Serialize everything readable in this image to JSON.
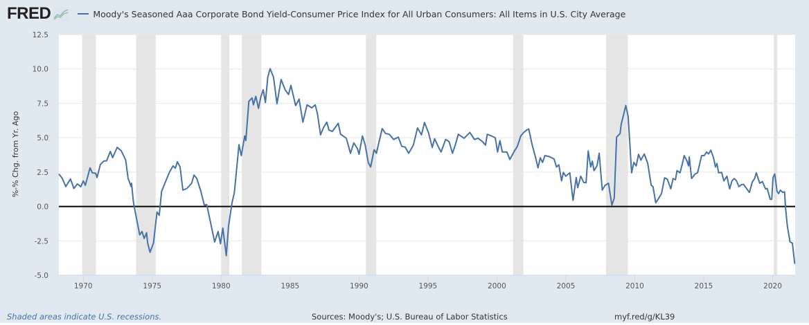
{
  "header": {
    "logo_text": "FRED",
    "logo_icon": "line-graph-icon",
    "legend_title": "Moody's Seasoned Aaa Corporate Bond Yield-Consumer Price Index for All Urban Consumers: All Items in U.S. City Average"
  },
  "footer": {
    "recession_note": "Shaded areas indicate U.S. recessions.",
    "sources": "Sources: Moody's; U.S. Bureau of Labor Statistics",
    "short_url": "myf.red/g/KL39"
  },
  "chart_data": {
    "type": "line",
    "title": "",
    "xlabel": "",
    "ylabel": "%-% Chg. from Yr. Ago",
    "xlim": [
      1968.23,
      2021.63
    ],
    "ylim": [
      -5.0,
      12.5
    ],
    "y_ticks": [
      "-5.0",
      "-2.5",
      "0.0",
      "2.5",
      "5.0",
      "7.5",
      "10.0",
      "12.5"
    ],
    "x_ticks": [
      "1970",
      "1975",
      "1980",
      "1985",
      "1990",
      "1995",
      "2000",
      "2005",
      "2010",
      "2015",
      "2020"
    ],
    "grid": true,
    "zero_line": true,
    "colors": {
      "series": "#4572a7",
      "recession": "#e5e5e5",
      "background": "#e1e9f0",
      "plot": "#ffffff"
    },
    "recessions": [
      [
        "1969-12",
        "1970-11"
      ],
      [
        "1973-11",
        "1975-03"
      ],
      [
        "1980-01",
        "1980-07"
      ],
      [
        "1981-07",
        "1982-11"
      ],
      [
        "1990-07",
        "1991-03"
      ],
      [
        "2001-03",
        "2001-11"
      ],
      [
        "2007-12",
        "2009-06"
      ],
      [
        "2020-02",
        "2020-04"
      ]
    ],
    "series": [
      {
        "name": "Moody's Seasoned Aaa Corporate Bond Yield-Consumer Price Index for All Urban Consumers: All Items in U.S. City Average",
        "points": [
          [
            1968.23,
            2.36
          ],
          [
            1968.48,
            2.04
          ],
          [
            1968.73,
            1.44
          ],
          [
            1969.07,
            2.0
          ],
          [
            1969.32,
            1.31
          ],
          [
            1969.57,
            1.64
          ],
          [
            1969.82,
            1.44
          ],
          [
            1970.0,
            1.86
          ],
          [
            1970.15,
            1.54
          ],
          [
            1970.49,
            2.81
          ],
          [
            1970.65,
            2.45
          ],
          [
            1970.9,
            2.41
          ],
          [
            1971.0,
            2.1
          ],
          [
            1971.24,
            3.05
          ],
          [
            1971.49,
            3.3
          ],
          [
            1971.69,
            3.32
          ],
          [
            1971.96,
            4.0
          ],
          [
            1972.13,
            3.55
          ],
          [
            1972.46,
            4.3
          ],
          [
            1972.75,
            4.05
          ],
          [
            1973.08,
            3.37
          ],
          [
            1973.25,
            2.05
          ],
          [
            1973.47,
            1.44
          ],
          [
            1973.5,
            1.69
          ],
          [
            1973.64,
            0.29
          ],
          [
            1973.8,
            -0.57
          ],
          [
            1974.09,
            -2.07
          ],
          [
            1974.26,
            -1.82
          ],
          [
            1974.42,
            -2.33
          ],
          [
            1974.59,
            -1.91
          ],
          [
            1974.67,
            -2.66
          ],
          [
            1974.84,
            -3.33
          ],
          [
            1975.09,
            -2.66
          ],
          [
            1975.35,
            -0.4
          ],
          [
            1975.51,
            -0.65
          ],
          [
            1975.68,
            1.1
          ],
          [
            1976.02,
            1.94
          ],
          [
            1976.27,
            2.53
          ],
          [
            1976.52,
            2.95
          ],
          [
            1976.68,
            2.78
          ],
          [
            1976.82,
            3.25
          ],
          [
            1977.02,
            2.87
          ],
          [
            1977.22,
            1.19
          ],
          [
            1977.52,
            1.31
          ],
          [
            1977.86,
            1.69
          ],
          [
            1978.03,
            2.28
          ],
          [
            1978.23,
            2.04
          ],
          [
            1978.53,
            1.1
          ],
          [
            1978.78,
            0.1
          ],
          [
            1978.95,
            0.14
          ],
          [
            1979.12,
            -0.65
          ],
          [
            1979.53,
            -2.58
          ],
          [
            1979.78,
            -1.82
          ],
          [
            1979.95,
            -2.71
          ],
          [
            1980.12,
            -1.57
          ],
          [
            1980.37,
            -3.58
          ],
          [
            1980.54,
            -1.41
          ],
          [
            1980.79,
            0.27
          ],
          [
            1980.96,
            1.02
          ],
          [
            1981.29,
            4.49
          ],
          [
            1981.46,
            3.7
          ],
          [
            1981.71,
            5.13
          ],
          [
            1981.79,
            4.79
          ],
          [
            1982.01,
            7.64
          ],
          [
            1982.24,
            7.89
          ],
          [
            1982.34,
            7.39
          ],
          [
            1982.51,
            8.01
          ],
          [
            1982.71,
            7.14
          ],
          [
            1982.88,
            7.97
          ],
          [
            1983.05,
            8.48
          ],
          [
            1983.21,
            7.56
          ],
          [
            1983.38,
            9.4
          ],
          [
            1983.55,
            10.02
          ],
          [
            1983.8,
            9.4
          ],
          [
            1984.05,
            7.47
          ],
          [
            1984.35,
            9.23
          ],
          [
            1984.64,
            8.48
          ],
          [
            1984.89,
            8.14
          ],
          [
            1985.06,
            8.81
          ],
          [
            1985.4,
            7.34
          ],
          [
            1985.65,
            7.81
          ],
          [
            1985.93,
            6.13
          ],
          [
            1986.23,
            7.39
          ],
          [
            1986.57,
            7.17
          ],
          [
            1986.82,
            7.39
          ],
          [
            1986.99,
            6.72
          ],
          [
            1987.21,
            5.21
          ],
          [
            1987.41,
            5.71
          ],
          [
            1987.66,
            6.13
          ],
          [
            1987.82,
            5.55
          ],
          [
            1988.07,
            5.46
          ],
          [
            1988.49,
            6.05
          ],
          [
            1988.66,
            5.26
          ],
          [
            1989.08,
            4.96
          ],
          [
            1989.38,
            3.87
          ],
          [
            1989.62,
            4.62
          ],
          [
            1989.88,
            4.21
          ],
          [
            1990.0,
            3.79
          ],
          [
            1990.25,
            5.13
          ],
          [
            1990.45,
            4.46
          ],
          [
            1990.67,
            3.2
          ],
          [
            1990.84,
            2.87
          ],
          [
            1991.09,
            4.12
          ],
          [
            1991.26,
            3.87
          ],
          [
            1991.68,
            5.66
          ],
          [
            1991.93,
            5.3
          ],
          [
            1992.18,
            5.26
          ],
          [
            1992.51,
            4.87
          ],
          [
            1992.85,
            5.04
          ],
          [
            1993.1,
            4.37
          ],
          [
            1993.35,
            4.32
          ],
          [
            1993.6,
            3.87
          ],
          [
            1993.94,
            4.46
          ],
          [
            1994.24,
            5.71
          ],
          [
            1994.53,
            5.21
          ],
          [
            1994.75,
            6.1
          ],
          [
            1995.03,
            5.38
          ],
          [
            1995.31,
            4.29
          ],
          [
            1995.48,
            4.92
          ],
          [
            1995.78,
            4.29
          ],
          [
            1995.95,
            3.96
          ],
          [
            1996.28,
            4.87
          ],
          [
            1996.53,
            4.71
          ],
          [
            1996.78,
            3.87
          ],
          [
            1996.95,
            4.37
          ],
          [
            1997.2,
            5.25
          ],
          [
            1997.62,
            4.96
          ],
          [
            1998.04,
            5.38
          ],
          [
            1998.37,
            4.87
          ],
          [
            1998.63,
            4.96
          ],
          [
            1998.96,
            4.71
          ],
          [
            1999.17,
            4.46
          ],
          [
            1999.3,
            5.25
          ],
          [
            1999.6,
            5.13
          ],
          [
            1999.88,
            5.0
          ],
          [
            2000.05,
            3.96
          ],
          [
            2000.22,
            4.79
          ],
          [
            2000.39,
            3.96
          ],
          [
            2000.72,
            3.96
          ],
          [
            2000.94,
            3.42
          ],
          [
            2001.23,
            3.96
          ],
          [
            2001.48,
            4.37
          ],
          [
            2001.73,
            5.13
          ],
          [
            2001.94,
            5.38
          ],
          [
            2002.15,
            5.55
          ],
          [
            2002.31,
            5.63
          ],
          [
            2002.56,
            4.46
          ],
          [
            2002.81,
            3.54
          ],
          [
            2002.98,
            2.81
          ],
          [
            2003.15,
            3.54
          ],
          [
            2003.31,
            3.2
          ],
          [
            2003.48,
            3.7
          ],
          [
            2003.82,
            3.62
          ],
          [
            2004.15,
            3.45
          ],
          [
            2004.32,
            2.87
          ],
          [
            2004.49,
            3.03
          ],
          [
            2004.69,
            1.86
          ],
          [
            2004.82,
            2.48
          ],
          [
            2004.99,
            2.2
          ],
          [
            2005.29,
            2.45
          ],
          [
            2005.52,
            0.44
          ],
          [
            2005.75,
            2.11
          ],
          [
            2005.86,
            1.36
          ],
          [
            2006.08,
            2.2
          ],
          [
            2006.3,
            1.74
          ],
          [
            2006.47,
            1.74
          ],
          [
            2006.62,
            4.04
          ],
          [
            2006.8,
            2.87
          ],
          [
            2006.92,
            3.29
          ],
          [
            2007.04,
            2.61
          ],
          [
            2007.26,
            2.95
          ],
          [
            2007.42,
            3.87
          ],
          [
            2007.64,
            1.19
          ],
          [
            2007.84,
            1.53
          ],
          [
            2008.09,
            1.69
          ],
          [
            2008.34,
            0.1
          ],
          [
            2008.51,
            0.6
          ],
          [
            2008.68,
            5.04
          ],
          [
            2008.93,
            5.3
          ],
          [
            2009.01,
            5.96
          ],
          [
            2009.35,
            7.34
          ],
          [
            2009.52,
            6.55
          ],
          [
            2009.77,
            2.45
          ],
          [
            2009.93,
            3.2
          ],
          [
            2010.1,
            2.95
          ],
          [
            2010.27,
            3.79
          ],
          [
            2010.44,
            3.37
          ],
          [
            2010.69,
            3.82
          ],
          [
            2010.94,
            3.12
          ],
          [
            2011.19,
            1.53
          ],
          [
            2011.32,
            1.44
          ],
          [
            2011.52,
            0.27
          ],
          [
            2011.69,
            0.52
          ],
          [
            2011.94,
            0.94
          ],
          [
            2012.16,
            2.08
          ],
          [
            2012.36,
            1.98
          ],
          [
            2012.61,
            1.28
          ],
          [
            2012.78,
            2.03
          ],
          [
            2012.95,
            1.94
          ],
          [
            2013.06,
            2.61
          ],
          [
            2013.28,
            2.45
          ],
          [
            2013.45,
            3.12
          ],
          [
            2013.58,
            3.7
          ],
          [
            2013.79,
            3.29
          ],
          [
            2013.9,
            2.95
          ],
          [
            2013.95,
            3.6
          ],
          [
            2014.12,
            2.03
          ],
          [
            2014.37,
            2.36
          ],
          [
            2014.55,
            2.45
          ],
          [
            2014.85,
            3.7
          ],
          [
            2015.04,
            3.7
          ],
          [
            2015.21,
            3.96
          ],
          [
            2015.35,
            3.82
          ],
          [
            2015.51,
            4.09
          ],
          [
            2015.71,
            3.54
          ],
          [
            2015.85,
            2.87
          ],
          [
            2015.96,
            3.12
          ],
          [
            2016.08,
            2.45
          ],
          [
            2016.3,
            2.48
          ],
          [
            2016.46,
            1.86
          ],
          [
            2016.68,
            2.2
          ],
          [
            2016.88,
            1.28
          ],
          [
            2017.05,
            1.86
          ],
          [
            2017.22,
            2.03
          ],
          [
            2017.38,
            1.86
          ],
          [
            2017.55,
            1.44
          ],
          [
            2017.72,
            1.58
          ],
          [
            2017.89,
            1.61
          ],
          [
            2018.31,
            1.02
          ],
          [
            2018.52,
            1.78
          ],
          [
            2018.69,
            2.03
          ],
          [
            2018.81,
            2.45
          ],
          [
            2019.06,
            1.69
          ],
          [
            2019.26,
            1.81
          ],
          [
            2019.48,
            1.28
          ],
          [
            2019.6,
            1.31
          ],
          [
            2019.82,
            0.52
          ],
          [
            2019.93,
            0.52
          ],
          [
            2020.03,
            2.11
          ],
          [
            2020.15,
            2.36
          ],
          [
            2020.32,
            1.1
          ],
          [
            2020.43,
            0.94
          ],
          [
            2020.56,
            1.19
          ],
          [
            2020.73,
            1.02
          ],
          [
            2020.86,
            1.07
          ],
          [
            2020.93,
            -0.07
          ],
          [
            2021.06,
            -1.41
          ],
          [
            2021.26,
            -2.58
          ],
          [
            2021.43,
            -2.66
          ],
          [
            2021.6,
            -4.17
          ]
        ]
      }
    ]
  }
}
